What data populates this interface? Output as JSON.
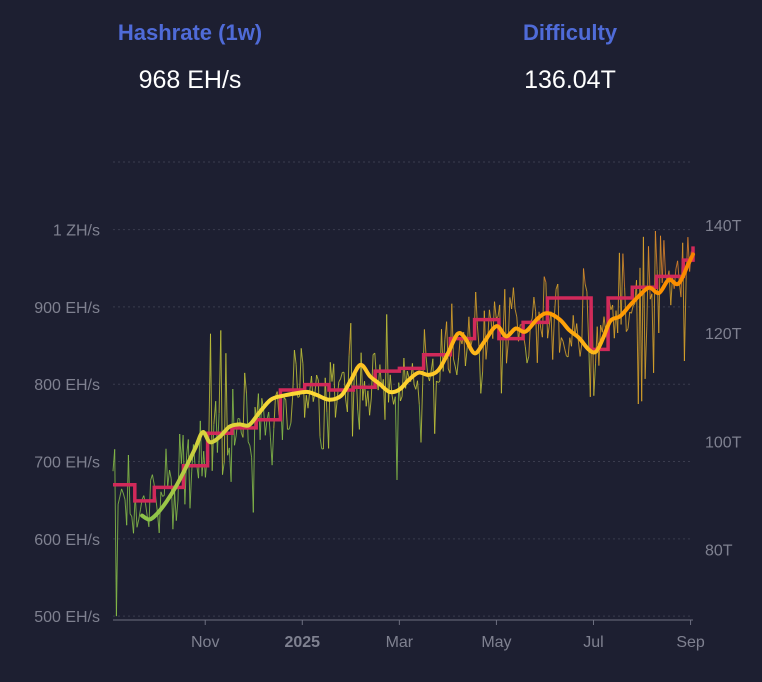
{
  "stats": {
    "hashrate_label": "Hashrate (1w)",
    "hashrate_value": "968 EH/s",
    "difficulty_label": "Difficulty",
    "difficulty_value": "136.04T"
  },
  "colors": {
    "background": "#1d1f31",
    "label_blue": "#4f6bd8",
    "grid": "#3a3c4e",
    "tick_text": "#7f8190",
    "difficulty_line": "#d1295a",
    "hashrate_low": "#8bc34a",
    "hashrate_mid": "#fdd835",
    "hashrate_high": "#ff9800",
    "hashrate_top": "#f57c00"
  },
  "chart_data": {
    "type": "line",
    "title": "",
    "x_axis": {
      "ticks": [
        {
          "label": "Nov",
          "month_index": 1.0,
          "bold": false
        },
        {
          "label": "2025",
          "month_index": 3.0,
          "bold": true
        },
        {
          "label": "Mar",
          "month_index": 5.0,
          "bold": false
        },
        {
          "label": "May",
          "month_index": 7.0,
          "bold": false
        },
        {
          "label": "Jul",
          "month_index": 9.0,
          "bold": false
        },
        {
          "label": "Sep",
          "month_index": 11.0,
          "bold": false
        }
      ],
      "range_months": [
        -0.9,
        11.05
      ]
    },
    "y_left": {
      "unit": "EH/s",
      "range": [
        495,
        1090
      ],
      "ticks": [
        {
          "label": "500 EH/s",
          "value": 500
        },
        {
          "label": "600 EH/s",
          "value": 600
        },
        {
          "label": "700 EH/s",
          "value": 700
        },
        {
          "label": "800 EH/s",
          "value": 800
        },
        {
          "label": "900 EH/s",
          "value": 900
        },
        {
          "label": "1 ZH/s",
          "value": 1000
        }
      ]
    },
    "y_right": {
      "unit": "T",
      "range": [
        67,
        152
      ],
      "ticks": [
        {
          "label": "80T",
          "value": 80
        },
        {
          "label": "100T",
          "value": 100
        },
        {
          "label": "120T",
          "value": 120
        },
        {
          "label": "140T",
          "value": 140
        }
      ]
    },
    "series": [
      {
        "name": "Difficulty",
        "axis": "right",
        "style": "step",
        "points": [
          [
            -0.9,
            92.0
          ],
          [
            -0.45,
            92.0
          ],
          [
            -0.45,
            89.0
          ],
          [
            -0.05,
            89.0
          ],
          [
            -0.05,
            91.5
          ],
          [
            0.55,
            91.5
          ],
          [
            0.55,
            95.5
          ],
          [
            1.05,
            95.5
          ],
          [
            1.05,
            101.5
          ],
          [
            1.55,
            101.5
          ],
          [
            1.55,
            102.5
          ],
          [
            2.05,
            102.5
          ],
          [
            2.05,
            104.0
          ],
          [
            2.55,
            104.0
          ],
          [
            2.55,
            109.5
          ],
          [
            3.05,
            109.5
          ],
          [
            3.05,
            110.5
          ],
          [
            3.55,
            110.5
          ],
          [
            3.55,
            109.5
          ],
          [
            4.05,
            109.5
          ],
          [
            4.05,
            110.0
          ],
          [
            4.5,
            110.0
          ],
          [
            4.5,
            113.0
          ],
          [
            5.0,
            113.0
          ],
          [
            5.0,
            113.5
          ],
          [
            5.5,
            113.5
          ],
          [
            5.5,
            116.0
          ],
          [
            6.05,
            116.0
          ],
          [
            6.05,
            119.0
          ],
          [
            6.55,
            119.0
          ],
          [
            6.55,
            122.5
          ],
          [
            7.05,
            122.5
          ],
          [
            7.05,
            119.0
          ],
          [
            7.55,
            119.0
          ],
          [
            7.55,
            122.0
          ],
          [
            8.05,
            122.0
          ],
          [
            8.05,
            126.5
          ],
          [
            8.55,
            126.5
          ],
          [
            8.55,
            126.5
          ],
          [
            8.95,
            126.5
          ],
          [
            8.95,
            117.0
          ],
          [
            9.3,
            117.0
          ],
          [
            9.3,
            126.5
          ],
          [
            9.8,
            126.5
          ],
          [
            9.8,
            128.5
          ],
          [
            10.3,
            128.5
          ],
          [
            10.3,
            130.5
          ],
          [
            10.85,
            130.5
          ],
          [
            10.85,
            133.5
          ],
          [
            11.05,
            133.5
          ],
          [
            11.05,
            136.04
          ]
        ]
      },
      {
        "name": "Hashrate (1w)",
        "axis": "left",
        "style": "smooth",
        "points": [
          [
            -0.3,
            630
          ],
          [
            -0.15,
            625
          ],
          [
            0.0,
            632
          ],
          [
            0.2,
            648
          ],
          [
            0.4,
            668
          ],
          [
            0.6,
            692
          ],
          [
            0.8,
            718
          ],
          [
            0.95,
            738
          ],
          [
            1.1,
            725
          ],
          [
            1.3,
            732
          ],
          [
            1.5,
            745
          ],
          [
            1.7,
            748
          ],
          [
            1.9,
            747
          ],
          [
            2.1,
            762
          ],
          [
            2.35,
            780
          ],
          [
            2.6,
            785
          ],
          [
            2.85,
            788
          ],
          [
            3.1,
            790
          ],
          [
            3.3,
            786
          ],
          [
            3.55,
            780
          ],
          [
            3.8,
            785
          ],
          [
            4.0,
            805
          ],
          [
            4.2,
            825
          ],
          [
            4.4,
            810
          ],
          [
            4.6,
            800
          ],
          [
            4.8,
            790
          ],
          [
            5.0,
            793
          ],
          [
            5.2,
            806
          ],
          [
            5.4,
            815
          ],
          [
            5.6,
            812
          ],
          [
            5.8,
            818
          ],
          [
            6.0,
            840
          ],
          [
            6.2,
            865
          ],
          [
            6.35,
            860
          ],
          [
            6.55,
            840
          ],
          [
            6.75,
            855
          ],
          [
            7.0,
            875
          ],
          [
            7.2,
            862
          ],
          [
            7.4,
            872
          ],
          [
            7.6,
            868
          ],
          [
            7.85,
            885
          ],
          [
            8.05,
            892
          ],
          [
            8.3,
            884
          ],
          [
            8.5,
            870
          ],
          [
            8.7,
            860
          ],
          [
            8.9,
            845
          ],
          [
            9.05,
            842
          ],
          [
            9.2,
            860
          ],
          [
            9.35,
            882
          ],
          [
            9.55,
            888
          ],
          [
            9.75,
            902
          ],
          [
            9.95,
            915
          ],
          [
            10.15,
            925
          ],
          [
            10.35,
            918
          ],
          [
            10.55,
            935
          ],
          [
            10.75,
            930
          ],
          [
            10.95,
            955
          ],
          [
            11.05,
            968
          ]
        ]
      },
      {
        "name": "Hashrate (daily)",
        "axis": "left",
        "style": "noisy",
        "trend": [
          [
            -0.9,
            660
          ],
          [
            -0.5,
            640
          ],
          [
            0.0,
            645
          ],
          [
            0.5,
            675
          ],
          [
            1.0,
            725
          ],
          [
            1.5,
            745
          ],
          [
            2.0,
            755
          ],
          [
            2.5,
            780
          ],
          [
            3.0,
            790
          ],
          [
            3.5,
            785
          ],
          [
            4.0,
            805
          ],
          [
            4.5,
            805
          ],
          [
            5.0,
            800
          ],
          [
            5.5,
            815
          ],
          [
            6.0,
            840
          ],
          [
            6.5,
            855
          ],
          [
            7.0,
            870
          ],
          [
            7.5,
            870
          ],
          [
            8.0,
            890
          ],
          [
            8.5,
            875
          ],
          [
            9.0,
            850
          ],
          [
            9.5,
            890
          ],
          [
            10.0,
            915
          ],
          [
            10.5,
            930
          ],
          [
            11.05,
            965
          ]
        ],
        "noise_amplitude": 55,
        "samples": 340
      }
    ]
  }
}
